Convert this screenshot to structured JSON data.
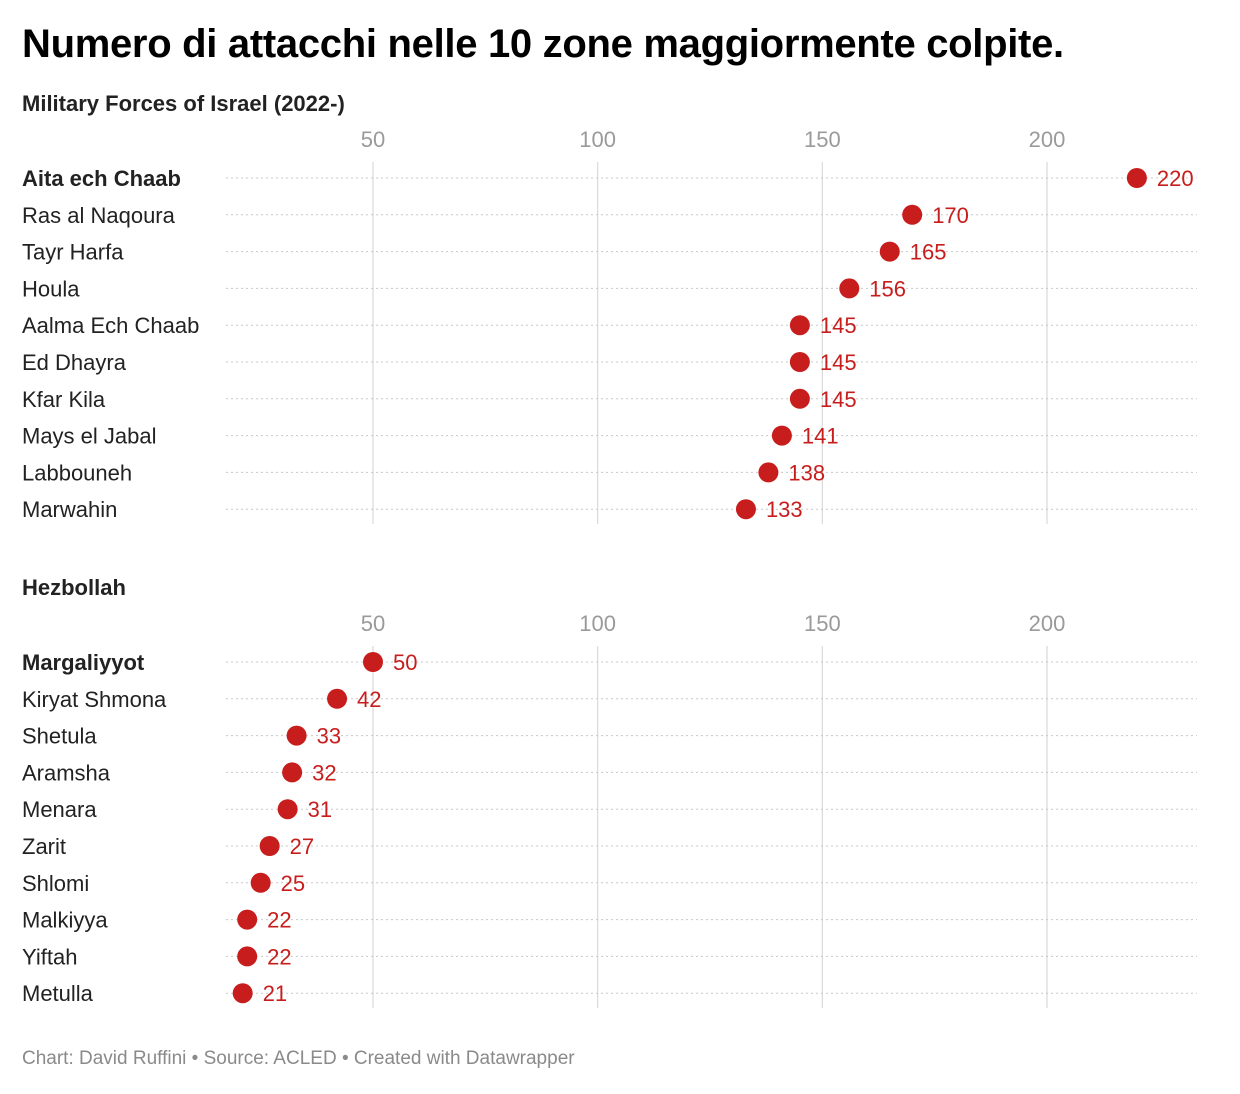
{
  "title": "Numero di attacchi nelle 10 zone maggiormente colpite.",
  "footer": "Chart: David Ruffini • Source: ACLED • Created with Datawrapper",
  "colors": {
    "dot": "#c71e1d",
    "grid": "#d9d9d9",
    "row_line": "#c8c8c8"
  },
  "chart_data": [
    {
      "type": "scatter",
      "title": "Military Forces of Israel (2022-)",
      "xticks": [
        50,
        100,
        150,
        200
      ],
      "xlim": [
        17,
        225
      ],
      "categories": [
        "Aita ech Chaab",
        "Ras al Naqoura",
        "Tayr Harfa",
        "Houla",
        "Aalma Ech Chaab",
        "Ed Dhayra",
        "Kfar Kila",
        "Mays el Jabal",
        "Labbouneh",
        "Marwahin"
      ],
      "values": [
        220,
        170,
        165,
        156,
        145,
        145,
        145,
        141,
        138,
        133
      ],
      "highlight_first": true
    },
    {
      "type": "scatter",
      "title": "Hezbollah",
      "xticks": [
        50,
        100,
        150,
        200
      ],
      "xlim": [
        17,
        225
      ],
      "categories": [
        "Margaliyyot",
        "Kiryat Shmona",
        "Shetula",
        "Aramsha",
        "Menara",
        "Zarit",
        "Shlomi",
        "Malkiyya",
        "Yiftah",
        "Metulla"
      ],
      "values": [
        50,
        42,
        33,
        32,
        31,
        27,
        25,
        22,
        22,
        21
      ],
      "highlight_first": true
    }
  ]
}
